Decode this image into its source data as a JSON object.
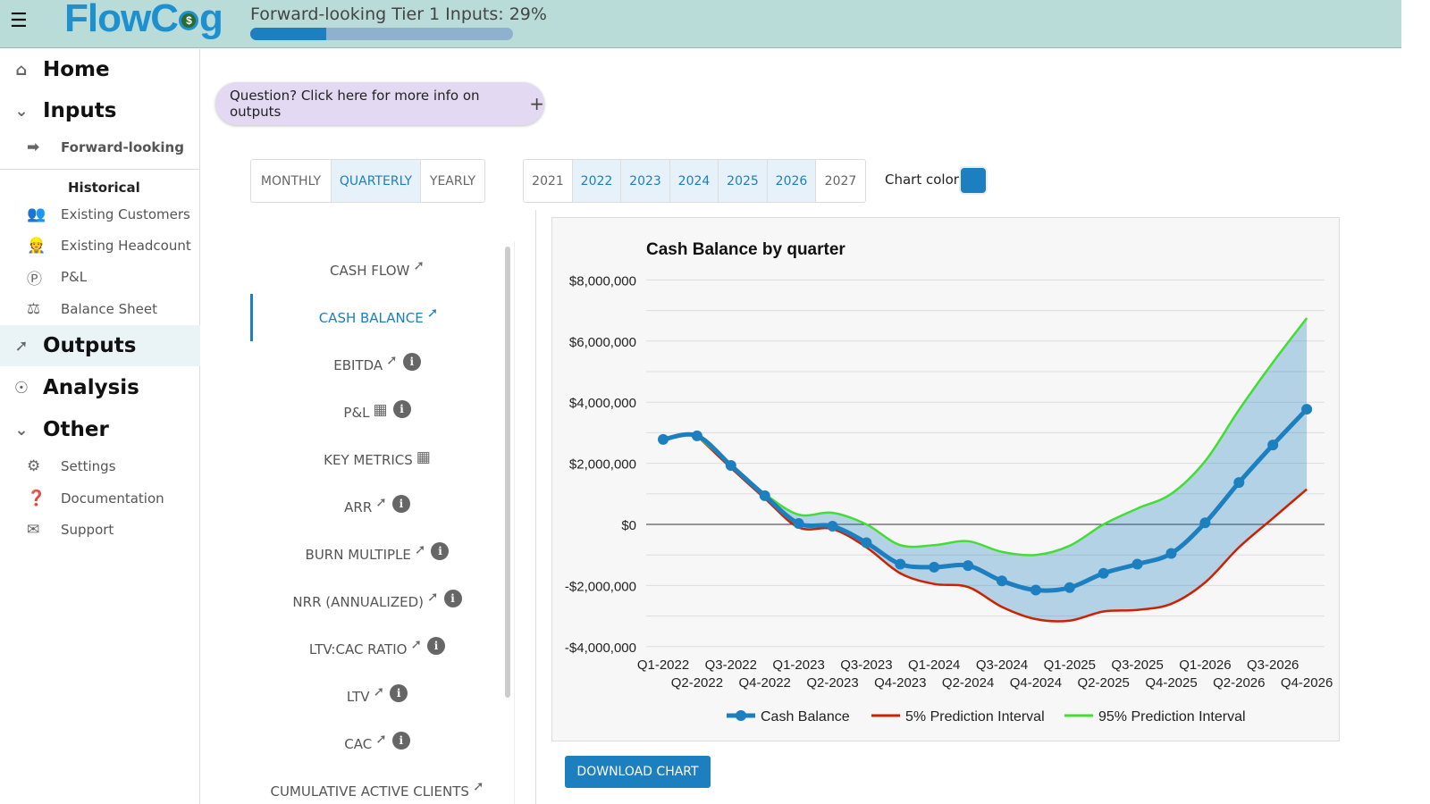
{
  "header": {
    "logo": "FlowCog",
    "progress_label": "Forward-looking Tier 1 Inputs: 29%",
    "progress_pct": 29
  },
  "sidebar": {
    "home": "Home",
    "inputs": "Inputs",
    "forward": "Forward-looking",
    "historical": "Historical",
    "hist_items": [
      "Existing Customers",
      "Existing Headcount",
      "P&L",
      "Balance Sheet"
    ],
    "outputs": "Outputs",
    "analysis": "Analysis",
    "other": "Other",
    "other_items": [
      "Settings",
      "Documentation",
      "Support"
    ]
  },
  "help": {
    "label": "Question? Click here for more info on outputs",
    "icon": "+"
  },
  "period": {
    "options": [
      "MONTHLY",
      "QUARTERLY",
      "YEARLY"
    ],
    "selected": "QUARTERLY"
  },
  "years": {
    "options": [
      "2021",
      "2022",
      "2023",
      "2024",
      "2025",
      "2026",
      "2027"
    ],
    "selected": [
      "2022",
      "2023",
      "2024",
      "2025",
      "2026"
    ]
  },
  "chart_color": {
    "label": "Chart color",
    "value": "#1c7fc0"
  },
  "metrics": [
    {
      "label": "CASH FLOW",
      "trend": true,
      "table": false,
      "info": false
    },
    {
      "label": "CASH BALANCE",
      "trend": true,
      "table": false,
      "info": false,
      "active": true
    },
    {
      "label": "EBITDA",
      "trend": true,
      "table": false,
      "info": true
    },
    {
      "label": "P&L",
      "trend": false,
      "table": true,
      "info": true
    },
    {
      "label": "KEY METRICS",
      "trend": false,
      "table": true,
      "info": false
    },
    {
      "label": "ARR",
      "trend": true,
      "table": false,
      "info": true
    },
    {
      "label": "BURN MULTIPLE",
      "trend": true,
      "table": false,
      "info": true
    },
    {
      "label": "NRR (ANNUALIZED)",
      "trend": true,
      "table": false,
      "info": true
    },
    {
      "label": "LTV:CAC RATIO",
      "trend": true,
      "table": false,
      "info": true
    },
    {
      "label": "LTV",
      "trend": true,
      "table": false,
      "info": true
    },
    {
      "label": "CAC",
      "trend": true,
      "table": false,
      "info": true
    },
    {
      "label": "CUMULATIVE ACTIVE CLIENTS",
      "trend": true,
      "table": false,
      "info": false
    }
  ],
  "download": "DOWNLOAD CHART",
  "chart_data": {
    "type": "line",
    "title": "Cash Balance by quarter",
    "categories": [
      "Q1-2022",
      "Q2-2022",
      "Q3-2022",
      "Q4-2022",
      "Q1-2023",
      "Q2-2023",
      "Q3-2023",
      "Q4-2023",
      "Q1-2024",
      "Q2-2024",
      "Q3-2024",
      "Q4-2024",
      "Q1-2025",
      "Q2-2025",
      "Q3-2025",
      "Q4-2025",
      "Q1-2026",
      "Q2-2026",
      "Q3-2026",
      "Q4-2026"
    ],
    "ylim": [
      -4000000,
      8000000
    ],
    "yticks": [
      8000000,
      6000000,
      4000000,
      2000000,
      0,
      -2000000,
      -4000000
    ],
    "ytick_labels": [
      "$8,000,000",
      "$6,000,000",
      "$4,000,000",
      "$2,000,000",
      "$0",
      "-$2,000,000",
      "-$4,000,000"
    ],
    "series": [
      {
        "name": "Cash Balance",
        "color": "#1c7fc0",
        "values": [
          2780000,
          2900000,
          1930000,
          940000,
          30000,
          -60000,
          -600000,
          -1300000,
          -1400000,
          -1350000,
          -1850000,
          -2150000,
          -2070000,
          -1600000,
          -1300000,
          -950000,
          50000,
          1370000,
          2600000,
          3770000
        ]
      },
      {
        "name": "5% Prediction Interval",
        "color": "#cc2200",
        "values": [
          null,
          2900000,
          1850000,
          850000,
          -100000,
          -150000,
          -750000,
          -1600000,
          -1950000,
          -2050000,
          -2700000,
          -3100000,
          -3150000,
          -2850000,
          -2800000,
          -2600000,
          -1900000,
          -750000,
          200000,
          1150000
        ]
      },
      {
        "name": "95% Prediction Interval",
        "color": "#44dd33",
        "values": [
          null,
          2900000,
          1950000,
          1000000,
          320000,
          380000,
          0,
          -680000,
          -680000,
          -550000,
          -900000,
          -1000000,
          -700000,
          0,
          520000,
          1000000,
          2070000,
          3750000,
          5300000,
          6750000
        ]
      }
    ],
    "legend": "bottom",
    "grid": true
  }
}
